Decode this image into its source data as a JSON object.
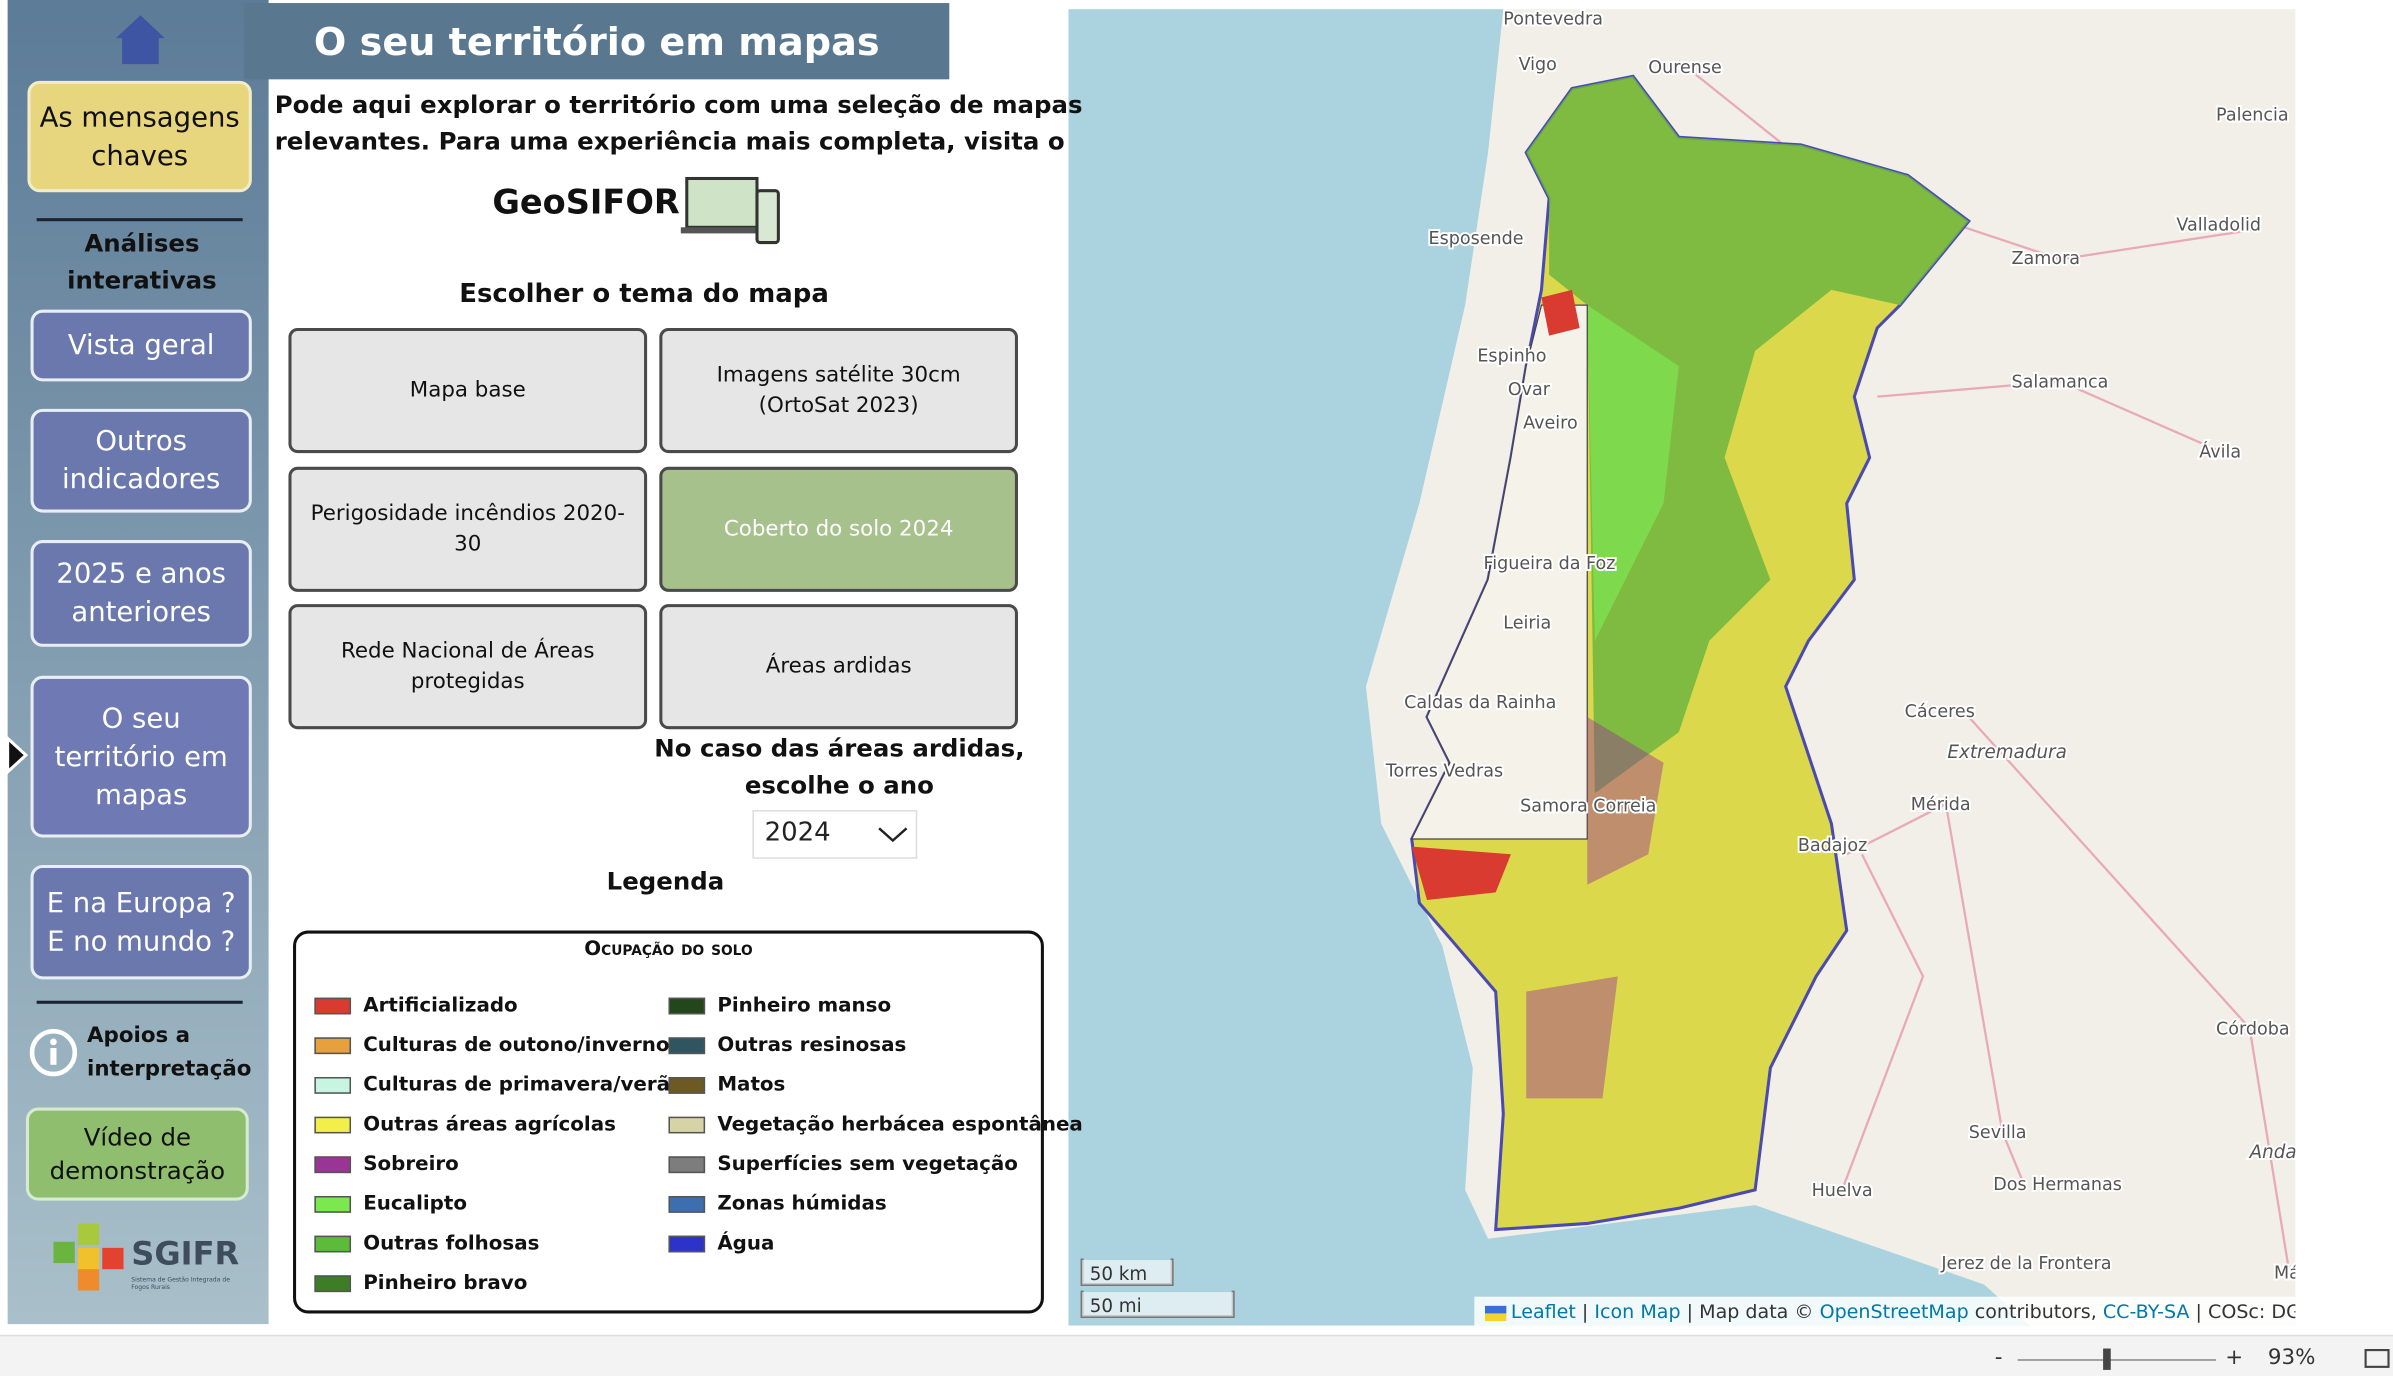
{
  "header": {
    "title": "O seu território em mapas"
  },
  "sidebar": {
    "key_messages": "As mensagens chaves",
    "section": "Análises interativas",
    "nav": [
      "Vista geral",
      "Outros indicadores",
      "2025 e anos anteriores",
      "O seu território em mapas",
      "E na Europa ? E no mundo ?"
    ],
    "active": 3,
    "help": "Apoios a interpretação",
    "video": "Vídeo de demonstração",
    "logo": "SGIFR",
    "logo_subtitle": "Sistema de Gestão Integrada de Fogos Rurais"
  },
  "intro": {
    "text": [
      "Pode aqui explorar o território com uma seleção de mapas",
      "relevantes. Para uma experiência mais completa, visita o"
    ],
    "link": "GeoSIFOR"
  },
  "themes": {
    "prompt": "Escolher o tema do mapa",
    "options": [
      "Mapa base",
      "Imagens satélite 30cm (OrtoSat 2023)",
      "Perigosidade incêndios 2020-30",
      "Coberto do solo 2024",
      "Rede Nacional de Áreas protegidas",
      "Áreas ardidas"
    ],
    "selected": 3
  },
  "year": {
    "prompt": [
      "No caso das áreas ardidas,",
      "escolhe o ano"
    ],
    "value": "2024"
  },
  "legend": {
    "heading": "Legenda",
    "title": "Ocupação do solo",
    "items": [
      {
        "name": "Artificializado",
        "color": "#d93b30"
      },
      {
        "name": "Culturas de outono/inverno",
        "color": "#e6a03c"
      },
      {
        "name": "Culturas de primavera/verão",
        "color": "#c8f5e2"
      },
      {
        "name": "Outras áreas agrícolas",
        "color": "#f2ee4a"
      },
      {
        "name": "Sobreiro",
        "color": "#9b3595"
      },
      {
        "name": "Eucalipto",
        "color": "#7ce84f"
      },
      {
        "name": "Outras folhosas",
        "color": "#5dbb3a"
      },
      {
        "name": "Pinheiro bravo",
        "color": "#3c7d26"
      },
      {
        "name": "Pinheiro manso",
        "color": "#24461c"
      },
      {
        "name": "Outras resinosas",
        "color": "#2f5560"
      },
      {
        "name": "Matos",
        "color": "#6d5a22"
      },
      {
        "name": "Vegetação herbácea espontânea",
        "color": "#d6d3a6"
      },
      {
        "name": "Superfícies sem vegetação",
        "color": "#7d7d7d"
      },
      {
        "name": "Zonas húmidas",
        "color": "#3d6fb0"
      },
      {
        "name": "Água",
        "color": "#2d32c8"
      }
    ]
  },
  "map": {
    "labels": [
      "Pontevedra",
      "Vigo",
      "Ourense",
      "Palencia",
      "Valladolid",
      "Zamora",
      "Salamanca",
      "Ávila",
      "Esposende",
      "Espinho",
      "Ovar",
      "Aveiro",
      "Figueira da Foz",
      "Leiria",
      "Caldas da Rainha",
      "Torres Vedras",
      "Samora Correia",
      "Cáceres",
      "Extremadura",
      "Mérida",
      "Badajoz",
      "Córdoba",
      "Sevilla",
      "Andalucía",
      "Huelva",
      "Dos Hermanas",
      "Jerez de la Frontera",
      "Málaga"
    ],
    "scale": [
      "50 km",
      "50 mi"
    ],
    "attribution": [
      "Leaflet",
      "|",
      "Icon Map",
      "| Map data ©",
      "OpenStreetMap",
      "contributors,",
      "CC-BY-SA",
      "| COSc: DGT"
    ]
  },
  "status": {
    "minus": "-",
    "plus": "+",
    "zoom": "93%"
  }
}
